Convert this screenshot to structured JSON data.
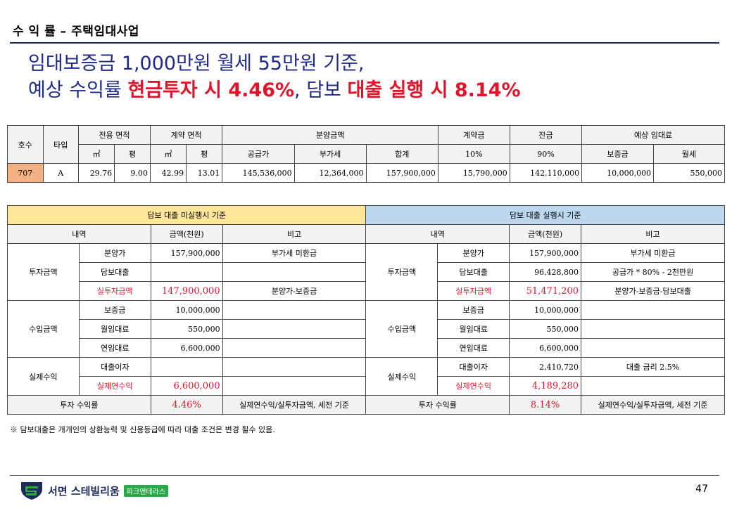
{
  "section_title": "수 익 률 – 주택임대사업",
  "headline": {
    "line1": "임대보증금 1,000만원 월세 55만원 기준,",
    "line2_prefix": "예상 수익률 ",
    "line2_red1": "현금투자 시 4.46%",
    "line2_mid": ", 담보 ",
    "line2_red2": "대출 실행 시 8.14%"
  },
  "unit_table": {
    "h_unit": "호수",
    "h_type": "타입",
    "h_exclusive": "전용 면적",
    "h_contract": "계약 면적",
    "h_sale": "분양금액",
    "h_down": "계약금",
    "h_balance": "잔금",
    "h_rent": "예상 임대료",
    "sub": [
      "㎡",
      "평",
      "㎡",
      "평",
      "공급가",
      "부가세",
      "합계",
      "10%",
      "90%",
      "보증금",
      "월세"
    ],
    "row": [
      "707",
      "A",
      "29.76",
      "9.00",
      "42.99",
      "13.01",
      "145,536,000",
      "12,364,000",
      "157,900,000",
      "15,790,000",
      "142,110,000",
      "10,000,000",
      "550,000"
    ]
  },
  "returns_table": {
    "left_header": "담보 대출 미실행시 기준",
    "right_header": "담보 대출 실행시 기준",
    "col_item": "내역",
    "col_amount": "금액(천원)",
    "col_note": "비고",
    "group_invest": "투자금액",
    "group_income": "수입금액",
    "group_actual": "실제수익",
    "left": {
      "sale": "분양가",
      "sale_amt": "157,900,000",
      "sale_note": "부가세 미환급",
      "loan": "담보대출",
      "loan_amt": "",
      "loan_note": "",
      "net": "실투자금액",
      "net_amt": "147,900,000",
      "net_note": "분양가-보증금",
      "deposit": "보증금",
      "deposit_amt": "10,000,000",
      "monthly": "월임대료",
      "monthly_amt": "550,000",
      "annual": "연임대료",
      "annual_amt": "6,600,000",
      "interest": "대출이자",
      "interest_amt": "",
      "actual": "실제연수익",
      "actual_amt": "6,600,000",
      "rate_label": "투자 수익률",
      "rate": "4.46%",
      "rate_note": "실제연수익/실투자금액, 세전 기준"
    },
    "right": {
      "sale": "분양가",
      "sale_amt": "157,900,000",
      "sale_note": "부가세 미환급",
      "loan": "담보대출",
      "loan_amt": "96,428,800",
      "loan_note": "공급가 * 80% - 2천만원",
      "net": "실투자금액",
      "net_amt": "51,471,200",
      "net_note": "분양가-보증금-담보대출",
      "deposit": "보증금",
      "deposit_amt": "10,000,000",
      "monthly": "월임대료",
      "monthly_amt": "550,000",
      "annual": "연임대료",
      "annual_amt": "6,600,000",
      "interest": "대출이자",
      "interest_amt": "2,410,720",
      "interest_note": "대출 금리   2.5%",
      "actual": "실제연수익",
      "actual_amt": "4,189,280",
      "rate_label": "투자 수익률",
      "rate": "8.14%",
      "rate_note": "실제연수익/실투자금액, 세전 기준"
    }
  },
  "note": "※ 담보대출은 개개인의 상환능력 및 신용등급에 따라 대출 조건은 변경 될수 있음.",
  "footer": {
    "brand": "서면 스테빌리움",
    "badge": "파크앤테라스",
    "page": "47"
  },
  "colors": {
    "title_blue": "#1f2a8a",
    "accent_red": "#e0142a",
    "yellow": "#ffe699",
    "blue": "#bdd7ee",
    "orange": "#f4b183"
  }
}
